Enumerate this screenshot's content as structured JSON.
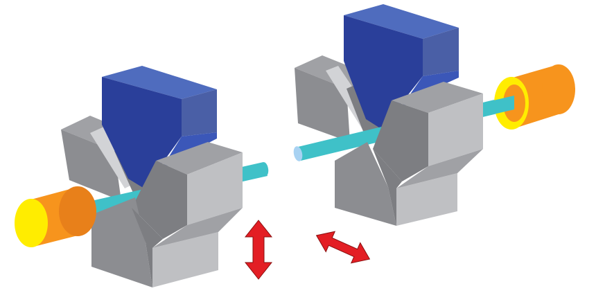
{
  "diagram": {
    "type": "isometric-mechanical-illustration",
    "units": [
      {
        "name": "left-unit",
        "parts": [
          "v-block",
          "upper-wedge",
          "fiber",
          "cylinder-end"
        ]
      },
      {
        "name": "right-unit",
        "parts": [
          "v-block",
          "upper-wedge",
          "fiber",
          "cylinder-end"
        ]
      }
    ],
    "motion_indicators": [
      {
        "name": "vertical-adjust-arrow",
        "direction": "up-down"
      },
      {
        "name": "lateral-adjust-arrow",
        "direction": "diagonal"
      }
    ]
  },
  "colors": {
    "block_top": "#a0a1a5",
    "block_left": "#8c8d91",
    "block_front": "#bfc0c3",
    "block_dark": "#7d7e82",
    "groove_light": "#d2d3d6",
    "wedge_top": "#4f6cbe",
    "wedge_front": "#2a3f9a",
    "wedge_side": "#4a5fa6",
    "wedge_lower": "#3b57b8",
    "fiber": "#3fc1c8",
    "fiber_tip": "#a8d2f2",
    "cylinder_body": "#f7941d",
    "cylinder_shade": "#e8801a",
    "cylinder_face": "#ffed00",
    "arrow": "#e31e24",
    "arrow_outline": "#8a1010"
  }
}
